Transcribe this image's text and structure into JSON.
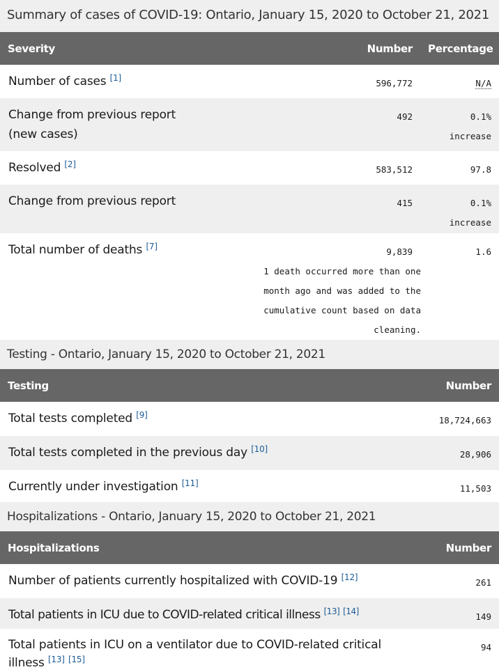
{
  "summary": {
    "caption": "Summary of cases of COVID-19: Ontario, January 15, 2020 to October 21, 2021",
    "headers": [
      "Severity",
      "Number",
      "Percentage"
    ],
    "rows": [
      {
        "label": "Number of cases",
        "ref": "[1]",
        "number": "596,772",
        "pct": "N/A"
      },
      {
        "label": "Change from previous report",
        "label2": "(new cases)",
        "number": "492",
        "pct": "0.1%",
        "pct2": "increase"
      },
      {
        "label": "Resolved",
        "ref": "[2]",
        "number": "583,512",
        "pct": "97.8"
      },
      {
        "label": "Change from previous report",
        "number": "415",
        "pct": "0.1%",
        "pct2": "increase"
      },
      {
        "label": "Total number of deaths",
        "ref": "[7]",
        "number": "9,839",
        "note": "1 death occurred more than one month ago and was added to the cumulative count based on data cleaning.",
        "pct": "1.6"
      }
    ]
  },
  "testing": {
    "caption": "Testing - Ontario, January 15, 2020 to October 21, 2021",
    "headers": [
      "Testing",
      "Number"
    ],
    "rows": [
      {
        "label": "Total tests completed",
        "ref": "[9]",
        "number": "18,724,663"
      },
      {
        "label": "Total tests completed in the previous day",
        "ref": "[10]",
        "number": "28,906"
      },
      {
        "label": "Currently under investigation",
        "ref": "[11]",
        "number": "11,503"
      }
    ]
  },
  "hosp": {
    "caption": "Hospitalizations - Ontario, January 15, 2020 to October 21, 2021",
    "headers": [
      "Hospitalizations",
      "Number"
    ],
    "rows": [
      {
        "label": "Number of patients currently hospitalized with COVID-19",
        "ref": "[12]",
        "number": "261"
      },
      {
        "label": "Total patients in ICU due to COVID-related critical illness",
        "ref": "[13]",
        "ref2": "[14]",
        "number": "149"
      },
      {
        "label": "Total patients in ICU on a ventilator due to COVID-related critical illness",
        "ref": "[13]",
        "ref2": "[15]",
        "number": "94"
      }
    ]
  }
}
